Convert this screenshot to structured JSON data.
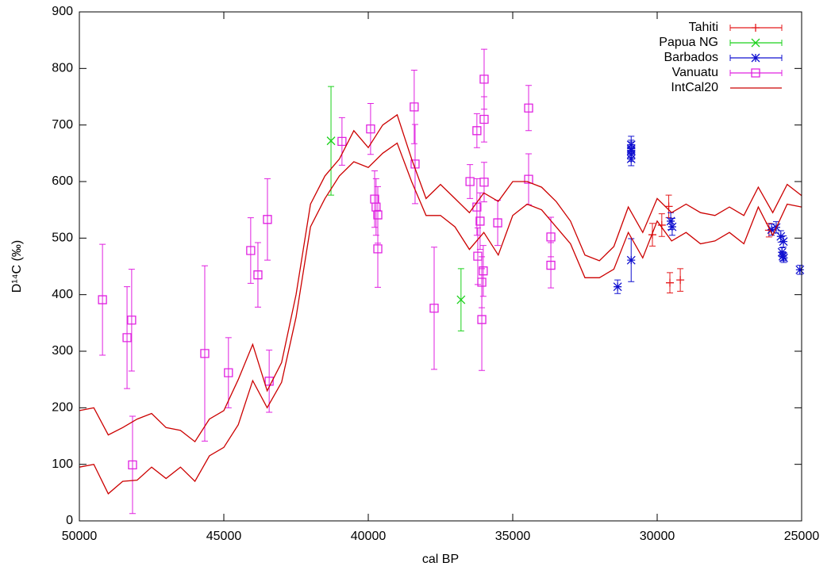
{
  "chart_data": {
    "type": "scatter",
    "xlabel": "cal BP",
    "ylabel": "D¹⁴C (‰)",
    "xlim": [
      50000,
      25000
    ],
    "ylim": [
      0,
      900
    ],
    "xticks": [
      50000,
      45000,
      40000,
      35000,
      30000,
      25000
    ],
    "yticks": [
      0,
      100,
      200,
      300,
      400,
      500,
      600,
      700,
      800,
      900
    ],
    "legend": "top-right",
    "series": [
      {
        "name": "Tahiti",
        "color": "#e41a1c",
        "marker": "plus",
        "x": [
          30165,
          29840,
          29600,
          29560,
          29200,
          26130
        ],
        "values": [
          506,
          523,
          556,
          421,
          426,
          514
        ],
        "errors": [
          20,
          20,
          20,
          18,
          20,
          12
        ]
      },
      {
        "name": "Papua NG",
        "color": "#1bd11b",
        "marker": "cross",
        "x": [
          41290,
          36790
        ],
        "values": [
          672,
          391
        ],
        "errors": [
          96,
          55
        ]
      },
      {
        "name": "Barbados",
        "color": "#1010d0",
        "marker": "star",
        "x": [
          31370,
          30900,
          30900,
          30900,
          30900,
          30900,
          30900,
          29530,
          29480,
          26040,
          25880,
          25720,
          25630,
          25650,
          25680,
          25620,
          25060
        ],
        "values": [
          414,
          665,
          655,
          648,
          640,
          461,
          658,
          530,
          520,
          515,
          519,
          503,
          494,
          468,
          475,
          465,
          444
        ],
        "errors": [
          12,
          15,
          15,
          12,
          12,
          38,
          15,
          15,
          15,
          10,
          10,
          10,
          10,
          8,
          8,
          8,
          8
        ]
      },
      {
        "name": "Vanuatu",
        "color": "#e020e0",
        "marker": "square",
        "x": [
          49200,
          48350,
          48190,
          48160,
          45660,
          44840,
          44070,
          43820,
          43490,
          43430,
          40910,
          39920,
          39780,
          39730,
          39670,
          39670,
          38410,
          38380,
          37720,
          36480,
          36240,
          36240,
          36210,
          36130,
          36070,
          36070,
          36020,
          35990,
          35990,
          35990,
          35520,
          34450,
          34450,
          33680,
          33680
        ],
        "values": [
          391,
          324,
          355,
          99,
          296,
          262,
          478,
          435,
          533,
          247,
          671,
          693,
          569,
          555,
          541,
          481,
          732,
          631,
          376,
          600,
          690,
          555,
          468,
          530,
          422,
          356,
          442,
          781,
          710,
          599,
          527,
          730,
          604,
          502,
          452
        ],
        "errors": [
          98,
          90,
          90,
          86,
          155,
          62,
          58,
          57,
          72,
          55,
          42,
          45,
          50,
          50,
          50,
          68,
          65,
          70,
          108,
          30,
          30,
          50,
          50,
          50,
          45,
          90,
          45,
          53,
          40,
          35,
          40,
          40,
          45,
          35,
          40
        ]
      },
      {
        "name": "IntCal20",
        "color": "#cc0000",
        "marker": "line",
        "x": [
          50000,
          49500,
          49000,
          48500,
          48000,
          47500,
          47000,
          46500,
          46000,
          45500,
          45000,
          44500,
          44000,
          43500,
          43000,
          42500,
          42000,
          41500,
          41000,
          40500,
          40000,
          39500,
          39000,
          38500,
          38000,
          37500,
          37000,
          36500,
          36000,
          35500,
          35000,
          34500,
          34000,
          33500,
          33000,
          32500,
          32000,
          31500,
          31000,
          30500,
          30000,
          29500,
          29000,
          28500,
          28000,
          27500,
          27000,
          26500,
          26000,
          25500,
          25000
        ],
        "values": [
          195,
          200,
          152,
          165,
          180,
          190,
          165,
          160,
          140,
          180,
          195,
          250,
          312,
          230,
          280,
          400,
          560,
          610,
          640,
          690,
          660,
          700,
          718,
          640,
          570,
          595,
          570,
          545,
          580,
          565,
          600,
          600,
          590,
          565,
          530,
          470,
          460,
          485,
          555,
          510,
          570,
          545,
          560,
          545,
          540,
          555,
          540,
          590,
          545,
          595,
          575
        ],
        "lower": [
          95,
          100,
          48,
          70,
          72,
          95,
          75,
          95,
          70,
          115,
          130,
          170,
          248,
          200,
          245,
          360,
          520,
          570,
          610,
          635,
          625,
          650,
          668,
          600,
          540,
          540,
          520,
          480,
          510,
          470,
          540,
          560,
          550,
          520,
          490,
          430,
          430,
          445,
          510,
          465,
          530,
          495,
          510,
          490,
          495,
          510,
          490,
          555,
          505,
          560,
          555
        ]
      }
    ]
  }
}
